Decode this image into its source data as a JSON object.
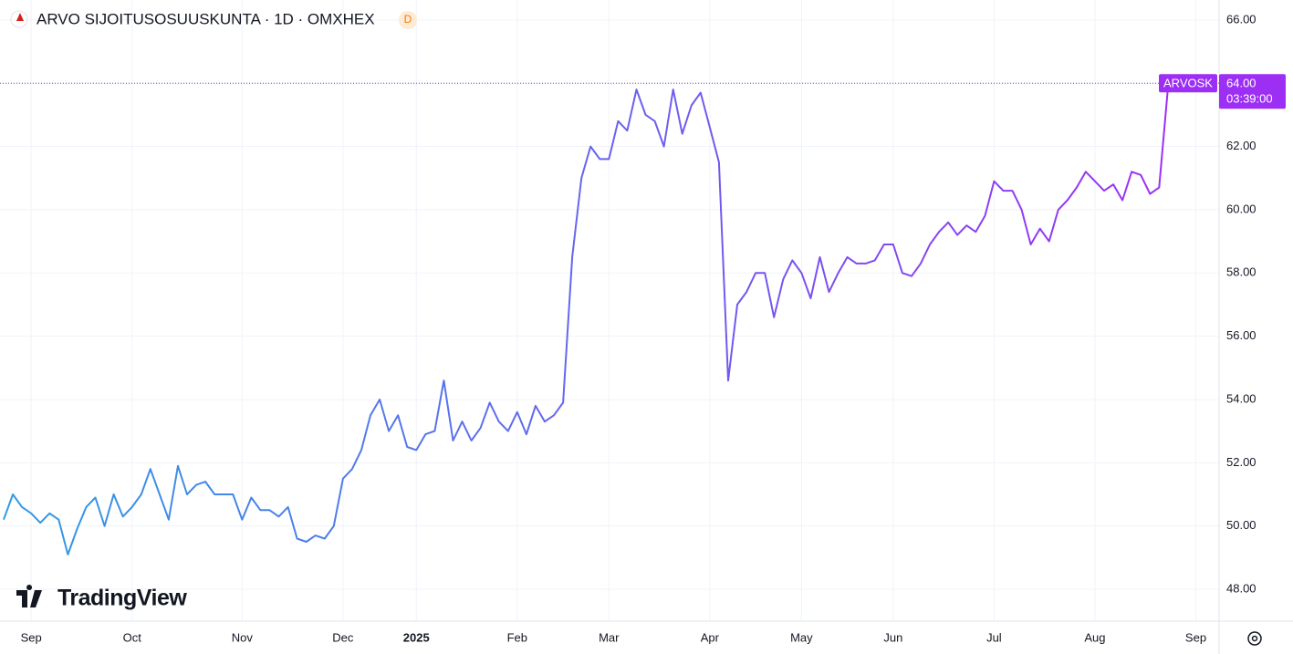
{
  "chart_data": {
    "type": "line",
    "title": "ARVO SIJOITUSOSUUSKUNTA · 1D · OMXHEX",
    "badge": "D",
    "logo": "TradingView",
    "categories": [
      null,
      null,
      null,
      "Sep",
      null,
      null,
      null,
      null,
      null,
      null,
      null,
      null,
      null,
      null,
      "Oct",
      null,
      null,
      null,
      null,
      null,
      null,
      null,
      null,
      null,
      null,
      null,
      "Nov",
      null,
      null,
      null,
      null,
      null,
      null,
      null,
      null,
      null,
      null,
      "Dec",
      null,
      null,
      null,
      null,
      null,
      null,
      null,
      "2025",
      null,
      null,
      null,
      null,
      null,
      null,
      null,
      null,
      null,
      null,
      "Feb",
      null,
      null,
      null,
      null,
      null,
      null,
      null,
      null,
      null,
      "Mar",
      null,
      null,
      null,
      null,
      null,
      null,
      null,
      null,
      null,
      null,
      "Apr",
      null,
      null,
      null,
      null,
      null,
      null,
      null,
      null,
      null,
      "May",
      null,
      null,
      null,
      null,
      null,
      null,
      null,
      null,
      null,
      "Jun",
      null,
      null,
      null,
      null,
      null,
      null,
      null,
      null,
      null,
      null,
      "Jul",
      null,
      null,
      null,
      null,
      null,
      null,
      null,
      null,
      null,
      null,
      "Aug",
      null,
      null,
      null,
      null,
      null,
      null,
      null,
      null,
      null,
      null,
      "Sep",
      null,
      null
    ],
    "series": [
      {
        "name": "ARVOSK",
        "colors": [
          "#2f9be6",
          "#9d2ff5"
        ],
        "values": [
          50.2,
          51.0,
          50.6,
          50.4,
          50.1,
          50.4,
          50.2,
          49.1,
          49.9,
          50.6,
          50.9,
          50.0,
          51.0,
          50.3,
          50.6,
          51.0,
          51.8,
          51.0,
          50.2,
          51.9,
          51.0,
          51.3,
          51.4,
          51.0,
          51.0,
          51.0,
          50.2,
          50.9,
          50.5,
          50.5,
          50.3,
          50.6,
          49.6,
          49.5,
          49.7,
          49.6,
          50.0,
          51.5,
          51.8,
          52.4,
          53.5,
          54.0,
          53.0,
          53.5,
          52.5,
          52.4,
          52.9,
          53.0,
          54.6,
          52.7,
          53.3,
          52.7,
          53.1,
          53.9,
          53.3,
          53.0,
          53.6,
          52.9,
          53.8,
          53.3,
          53.5,
          53.9,
          58.5,
          61.0,
          62.0,
          61.6,
          61.6,
          62.8,
          62.5,
          63.8,
          63.0,
          62.8,
          62.0,
          63.8,
          62.4,
          63.3,
          63.7,
          62.6,
          61.5,
          54.6,
          57.0,
          57.4,
          58.0,
          58.0,
          56.6,
          57.8,
          58.4,
          58.0,
          57.2,
          58.5,
          57.4,
          58.0,
          58.5,
          58.3,
          58.3,
          58.4,
          58.9,
          58.9,
          58.0,
          57.9,
          58.3,
          58.9,
          59.3,
          59.6,
          59.2,
          59.5,
          59.3,
          59.8,
          60.9,
          60.6,
          60.6,
          60.0,
          58.9,
          59.4,
          59.0,
          60.0,
          60.3,
          60.7,
          61.2,
          60.9,
          60.6,
          60.8,
          60.3,
          61.2,
          61.1,
          60.5,
          60.7,
          64.0,
          null,
          null,
          null,
          null,
          null
        ]
      }
    ],
    "price_label": {
      "value": 64,
      "label": "64.00",
      "countdown": "03:39:00"
    },
    "ylim": [
      47.02,
      66.63
    ],
    "yticks": [
      {
        "value": 48,
        "label": "48.00"
      },
      {
        "value": 50,
        "label": "50.00"
      },
      {
        "value": 52,
        "label": "52.00"
      },
      {
        "value": 54,
        "label": "54.00"
      },
      {
        "value": 56,
        "label": "56.00"
      },
      {
        "value": 58,
        "label": "58.00"
      },
      {
        "value": 60,
        "label": "60.00"
      },
      {
        "value": 62,
        "label": "62.00"
      },
      {
        "value": 64,
        "label": "64.00"
      },
      {
        "value": 66,
        "label": "66.00"
      }
    ],
    "grid": true
  }
}
